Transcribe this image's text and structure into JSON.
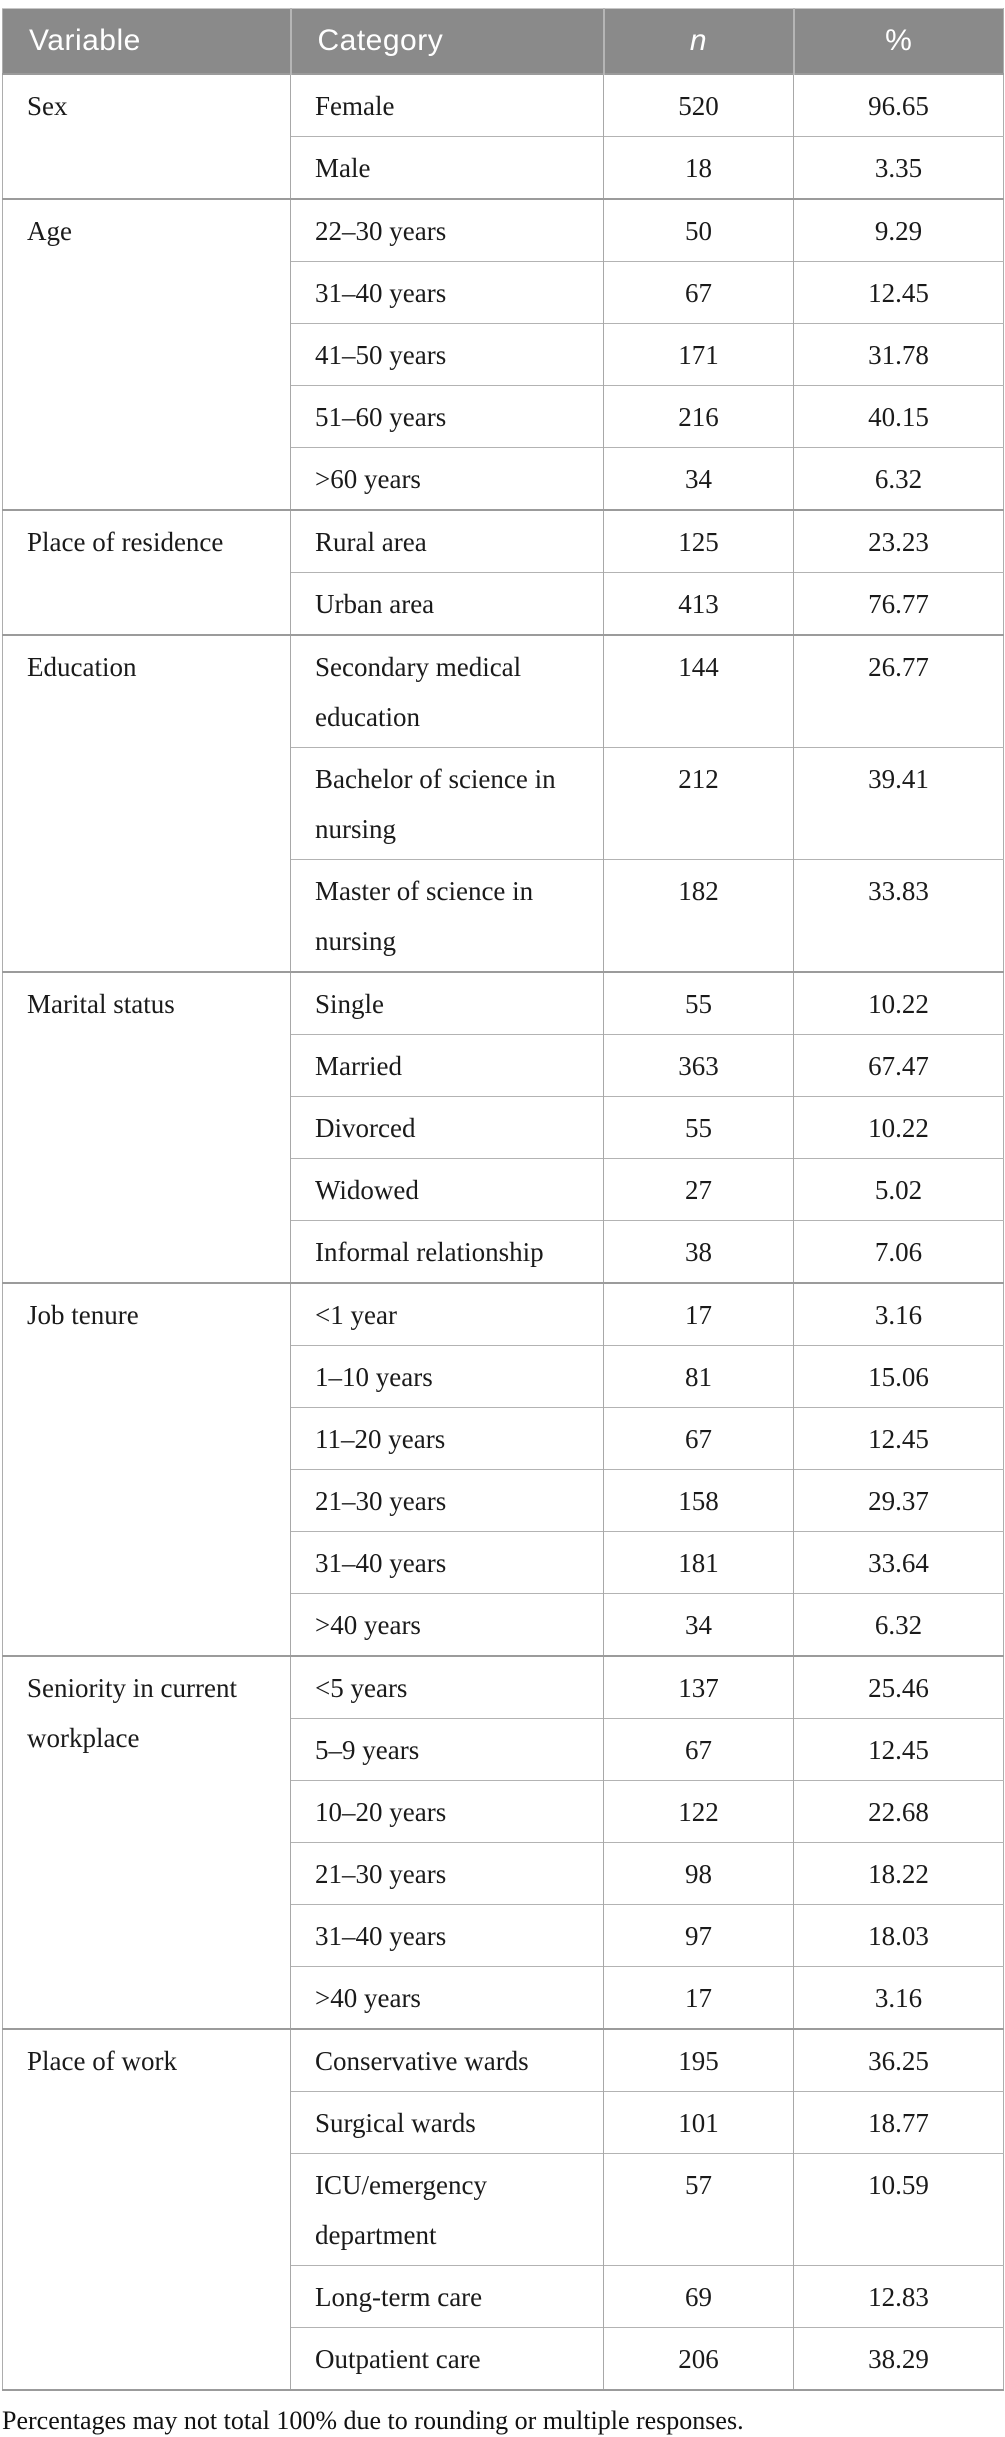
{
  "table": {
    "columns": [
      "Variable",
      "Category",
      "n",
      "%"
    ],
    "groups": [
      {
        "variable": "Sex",
        "rows": [
          [
            "Female",
            "520",
            "96.65"
          ],
          [
            "Male",
            "18",
            "3.35"
          ]
        ]
      },
      {
        "variable": "Age",
        "rows": [
          [
            "22–30 years",
            "50",
            "9.29"
          ],
          [
            "31–40 years",
            "67",
            "12.45"
          ],
          [
            "41–50 years",
            "171",
            "31.78"
          ],
          [
            "51–60 years",
            "216",
            "40.15"
          ],
          [
            ">60 years",
            "34",
            "6.32"
          ]
        ]
      },
      {
        "variable": "Place of residence",
        "rows": [
          [
            "Rural area",
            "125",
            "23.23"
          ],
          [
            "Urban area",
            "413",
            "76.77"
          ]
        ]
      },
      {
        "variable": "Education",
        "rows": [
          [
            "Secondary medical education",
            "144",
            "26.77"
          ],
          [
            "Bachelor of science in nursing",
            "212",
            "39.41"
          ],
          [
            "Master of science in nursing",
            "182",
            "33.83"
          ]
        ]
      },
      {
        "variable": "Marital status",
        "rows": [
          [
            "Single",
            "55",
            "10.22"
          ],
          [
            "Married",
            "363",
            "67.47"
          ],
          [
            "Divorced",
            "55",
            "10.22"
          ],
          [
            "Widowed",
            "27",
            "5.02"
          ],
          [
            "Informal relationship",
            "38",
            "7.06"
          ]
        ]
      },
      {
        "variable": "Job tenure",
        "rows": [
          [
            "<1 year",
            "17",
            "3.16"
          ],
          [
            "1–10 years",
            "81",
            "15.06"
          ],
          [
            "11–20 years",
            "67",
            "12.45"
          ],
          [
            "21–30 years",
            "158",
            "29.37"
          ],
          [
            "31–40 years",
            "181",
            "33.64"
          ],
          [
            ">40 years",
            "34",
            "6.32"
          ]
        ]
      },
      {
        "variable": "Seniority in current workplace",
        "rows": [
          [
            "<5 years",
            "137",
            "25.46"
          ],
          [
            "5–9 years",
            "67",
            "12.45"
          ],
          [
            "10–20 years",
            "122",
            "22.68"
          ],
          [
            "21–30 years",
            "98",
            "18.22"
          ],
          [
            "31–40 years",
            "97",
            "18.03"
          ],
          [
            ">40 years",
            "17",
            "3.16"
          ]
        ]
      },
      {
        "variable": "Place of work",
        "rows": [
          [
            "Conservative wards",
            "195",
            "36.25"
          ],
          [
            "Surgical wards",
            "101",
            "18.77"
          ],
          [
            "ICU/emergency department",
            "57",
            "10.59"
          ],
          [
            "Long-term care",
            "69",
            "12.83"
          ],
          [
            "Outpatient care",
            "206",
            "38.29"
          ]
        ]
      }
    ],
    "footnote": "Percentages may not total 100% due to rounding or multiple responses."
  },
  "colors": {
    "header_bg": "#8a8a8a",
    "header_text": "#ffffff",
    "group_border": "#9b9b9b",
    "inner_border": "#b3b3b3",
    "body_text": "#1a1a1a"
  }
}
